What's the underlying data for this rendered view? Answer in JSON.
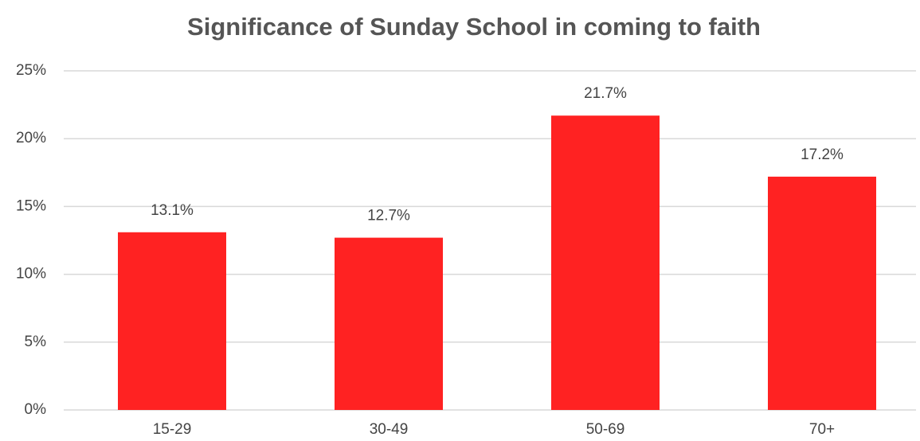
{
  "chart_data": {
    "type": "bar",
    "title": "Significance of Sunday School in coming to faith",
    "categories": [
      "15-29",
      "30-49",
      "50-69",
      "70+"
    ],
    "values": [
      13.1,
      12.7,
      21.7,
      17.2
    ],
    "value_labels": [
      "13.1%",
      "12.7%",
      "21.7%",
      "17.2%"
    ],
    "color": "#ff2222",
    "ylim": [
      0,
      25
    ],
    "yticks": [
      {
        "value": 0,
        "label": "0%"
      },
      {
        "value": 5,
        "label": "5%"
      },
      {
        "value": 10,
        "label": "10%"
      },
      {
        "value": 15,
        "label": "15%"
      },
      {
        "value": 20,
        "label": "20%"
      },
      {
        "value": 25,
        "label": "25%"
      }
    ],
    "grid": true
  }
}
